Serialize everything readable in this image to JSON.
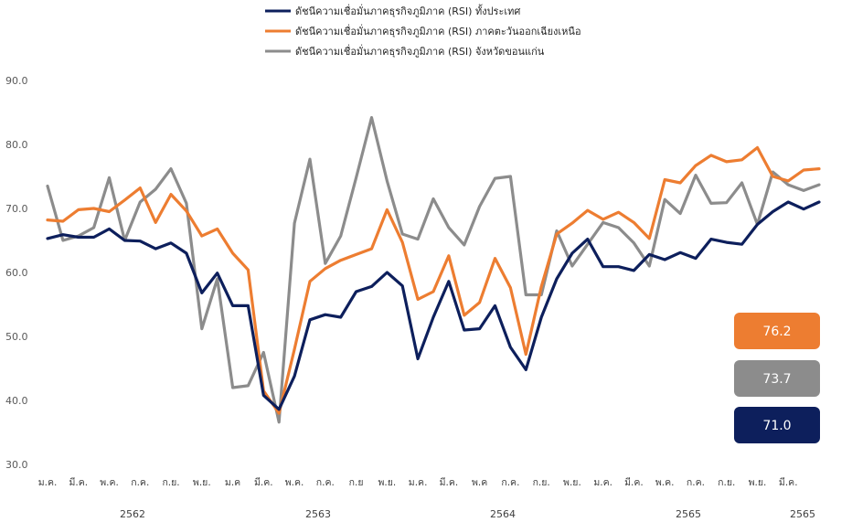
{
  "chart_data": {
    "type": "line",
    "ylim": [
      30.0,
      90.0
    ],
    "yticks": [
      "30.0",
      "40.0",
      "50.0",
      "60.0",
      "70.0",
      "80.0",
      "90.0"
    ],
    "x_tick_labels": [
      "ม.ค.",
      "มี.ค.",
      "พ.ค.",
      "ก.ค.",
      "ก.ย.",
      "พ.ย.",
      "ม.ค",
      "มี.ค.",
      "พ.ค.",
      "ก.ค.",
      "ก.ย",
      "พ.ย.",
      "ม.ค.",
      "มี.ค.",
      "พ.ค",
      "ก.ค.",
      "ก.ย.",
      "พ.ย.",
      "ม.ค.",
      "มี.ค.",
      "พ.ค.",
      "ก.ค.",
      "ก.ย.",
      "พ.ย.",
      "มี.ค."
    ],
    "years": [
      "2562",
      "2563",
      "2564",
      "2565",
      "2565"
    ],
    "legend_placement": "top",
    "series": [
      {
        "name": "ดัชนีความเชื่อมั่นภาคธุรกิจภูมิภาค (RSI) ทั้งประเทศ",
        "color": "#0d1f5c",
        "values": [
          65.3,
          65.9,
          65.5,
          65.5,
          66.8,
          65.0,
          64.9,
          63.7,
          64.6,
          63.0,
          56.8,
          59.9,
          54.8,
          54.8,
          40.8,
          38.6,
          43.8,
          52.6,
          53.4,
          53.0,
          57.0,
          57.8,
          60.0,
          57.9,
          46.5,
          53.0,
          58.6,
          51.0,
          51.2,
          54.8,
          48.3,
          44.8,
          53.0,
          59.0,
          63.0,
          65.2,
          60.9,
          60.9,
          60.3,
          62.8,
          62.0,
          63.1,
          62.2,
          65.2,
          64.7,
          64.4,
          67.5,
          69.5,
          71.0,
          69.9,
          71.0
        ]
      },
      {
        "name": "ดัชนีความเชื่อมั่นภาคธุรกิจภูมิภาค (RSI) ภาคตะวันออกเฉียงเหนือ",
        "color": "#ed7d31",
        "values": [
          68.2,
          68.0,
          69.8,
          70.0,
          69.5,
          71.3,
          73.2,
          67.8,
          72.2,
          69.6,
          65.7,
          66.8,
          63.0,
          60.4,
          41.5,
          38.0,
          48.0,
          58.6,
          60.6,
          61.9,
          62.8,
          63.7,
          69.8,
          64.7,
          55.8,
          57.0,
          62.6,
          53.3,
          55.3,
          62.2,
          57.6,
          47.2,
          57.8,
          66.0,
          67.7,
          69.7,
          68.3,
          69.4,
          67.8,
          65.3,
          74.5,
          74.0,
          76.7,
          78.3,
          77.3,
          77.6,
          79.5,
          75.0,
          74.3,
          76.0,
          76.2
        ]
      },
      {
        "name": "ดัชนีความเชื่อมั่นภาคธุรกิจภูมิภาค (RSI) จังหวัดขอนแก่น",
        "color": "#8c8c8c",
        "values": [
          73.5,
          65.0,
          65.7,
          67.0,
          74.8,
          65.0,
          71.0,
          73.0,
          76.2,
          70.8,
          51.2,
          59.0,
          42.0,
          42.3,
          47.5,
          36.6,
          67.7,
          77.7,
          61.4,
          65.7,
          74.8,
          84.2,
          74.3,
          66.0,
          65.2,
          71.5,
          67.0,
          64.3,
          70.3,
          74.7,
          75.0,
          56.5,
          56.5,
          66.5,
          61.0,
          64.4,
          67.8,
          67.0,
          64.6,
          61.0,
          71.4,
          69.2,
          75.2,
          70.8,
          70.9,
          74.0,
          67.5,
          75.7,
          73.7,
          72.8,
          73.7
        ]
      }
    ],
    "end_labels": [
      {
        "value": "76.2",
        "color": "#ed7d31"
      },
      {
        "value": "73.7",
        "color": "#8c8c8c"
      },
      {
        "value": "71.0",
        "color": "#0d1f5c"
      }
    ]
  }
}
